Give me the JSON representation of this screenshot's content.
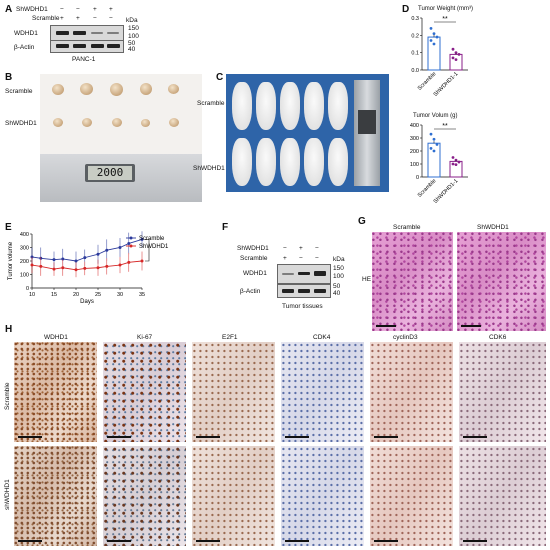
{
  "panel_letters": [
    "A",
    "B",
    "C",
    "D",
    "E",
    "F",
    "G",
    "H"
  ],
  "panelA": {
    "rows": [
      "ShWDHD1",
      "Scramble"
    ],
    "row_signs": [
      [
        "−",
        "−",
        "+",
        "+"
      ],
      [
        "+",
        "+",
        "−",
        "−"
      ]
    ],
    "bands": [
      "WDHD1",
      "β-Actin"
    ],
    "kda_label": "kDa",
    "markers": [
      "150",
      "100",
      "50",
      "40"
    ],
    "cell_line": "PANC-1"
  },
  "panelB": {
    "groups": [
      "Scramble",
      "ShWDHD1"
    ],
    "caliper_reading": "2000"
  },
  "panelC": {
    "groups": [
      "Scramble",
      "ShWDHD1"
    ]
  },
  "panelD": {
    "sig": "**",
    "charts": [
      {
        "title": "Tumor Weight (mm³)",
        "yticks": [
          "0.3",
          "0.2",
          "0.1",
          "0.0"
        ],
        "categories": [
          "Scramble",
          "ShWDHD1-1"
        ]
      },
      {
        "title": "Tumor Volum (g)",
        "yticks": [
          "400",
          "300",
          "200",
          "100",
          "0"
        ],
        "categories": [
          "Scramble",
          "ShWDHD1-1"
        ]
      }
    ]
  },
  "panelE": {
    "ylabel": "Tumor volume",
    "xlabel": "Days",
    "yticks": [
      "400",
      "300",
      "200",
      "100",
      "0"
    ],
    "xticks": [
      "10",
      "15",
      "20",
      "25",
      "30",
      "35"
    ],
    "legend": [
      "Scramble",
      "ShWDHD1"
    ]
  },
  "panelF": {
    "rows": [
      "ShWDHD1",
      "Scramble"
    ],
    "row_signs": [
      [
        "−",
        "+",
        "−"
      ],
      [
        "+",
        "−",
        "−"
      ]
    ],
    "bands": [
      "WDHD1",
      "β-Actin"
    ],
    "kda_label": "kDa",
    "markers": [
      "150",
      "100",
      "50",
      "40"
    ],
    "caption": "Tumor tissues"
  },
  "panelG": {
    "columns": [
      "Scramble",
      "ShWDHD1"
    ],
    "row_label": "HE"
  },
  "panelH": {
    "columns": [
      "WDHD1",
      "Ki-67",
      "E2F1",
      "CDK4",
      "cyclinD3",
      "CDK6"
    ],
    "rows": [
      "Scramble",
      "shWDHD1"
    ]
  },
  "chart_data": [
    {
      "type": "bar",
      "title": "Tumor Weight (mm³)",
      "categories": [
        "Scramble",
        "ShWDHD1-1"
      ],
      "values": [
        0.19,
        0.09
      ],
      "ylim": [
        0,
        0.3
      ],
      "points": [
        [
          0.24,
          0.21,
          0.19,
          0.17,
          0.15
        ],
        [
          0.12,
          0.1,
          0.09,
          0.07,
          0.06
        ]
      ],
      "colors": [
        "#2f6fd1",
        "#8a1f8a"
      ]
    },
    {
      "type": "bar",
      "title": "Tumor Volum (g)",
      "categories": [
        "Scramble",
        "ShWDHD1-1"
      ],
      "values": [
        260,
        120
      ],
      "ylim": [
        0,
        400
      ],
      "points": [
        [
          330,
          290,
          250,
          220,
          200
        ],
        [
          150,
          130,
          115,
          100,
          95
        ]
      ],
      "colors": [
        "#2f6fd1",
        "#8a1f8a"
      ]
    },
    {
      "type": "line",
      "xlabel": "Days",
      "ylabel": "Tumor volume",
      "x": [
        10,
        12,
        15,
        17,
        20,
        22,
        25,
        27,
        30,
        32,
        35
      ],
      "ylim": [
        0,
        400
      ],
      "series": [
        {
          "name": "Scramble",
          "values": [
            230,
            220,
            210,
            215,
            200,
            225,
            250,
            280,
            300,
            330,
            360
          ],
          "err": [
            70,
            80,
            60,
            75,
            70,
            60,
            70,
            80,
            70,
            80,
            60
          ],
          "color": "#2b3a9c"
        },
        {
          "name": "ShWDHD1",
          "values": [
            170,
            160,
            140,
            150,
            135,
            145,
            150,
            160,
            170,
            190,
            200
          ],
          "err": [
            60,
            70,
            50,
            60,
            55,
            50,
            60,
            60,
            60,
            70,
            70
          ],
          "color": "#d62828"
        }
      ]
    }
  ]
}
